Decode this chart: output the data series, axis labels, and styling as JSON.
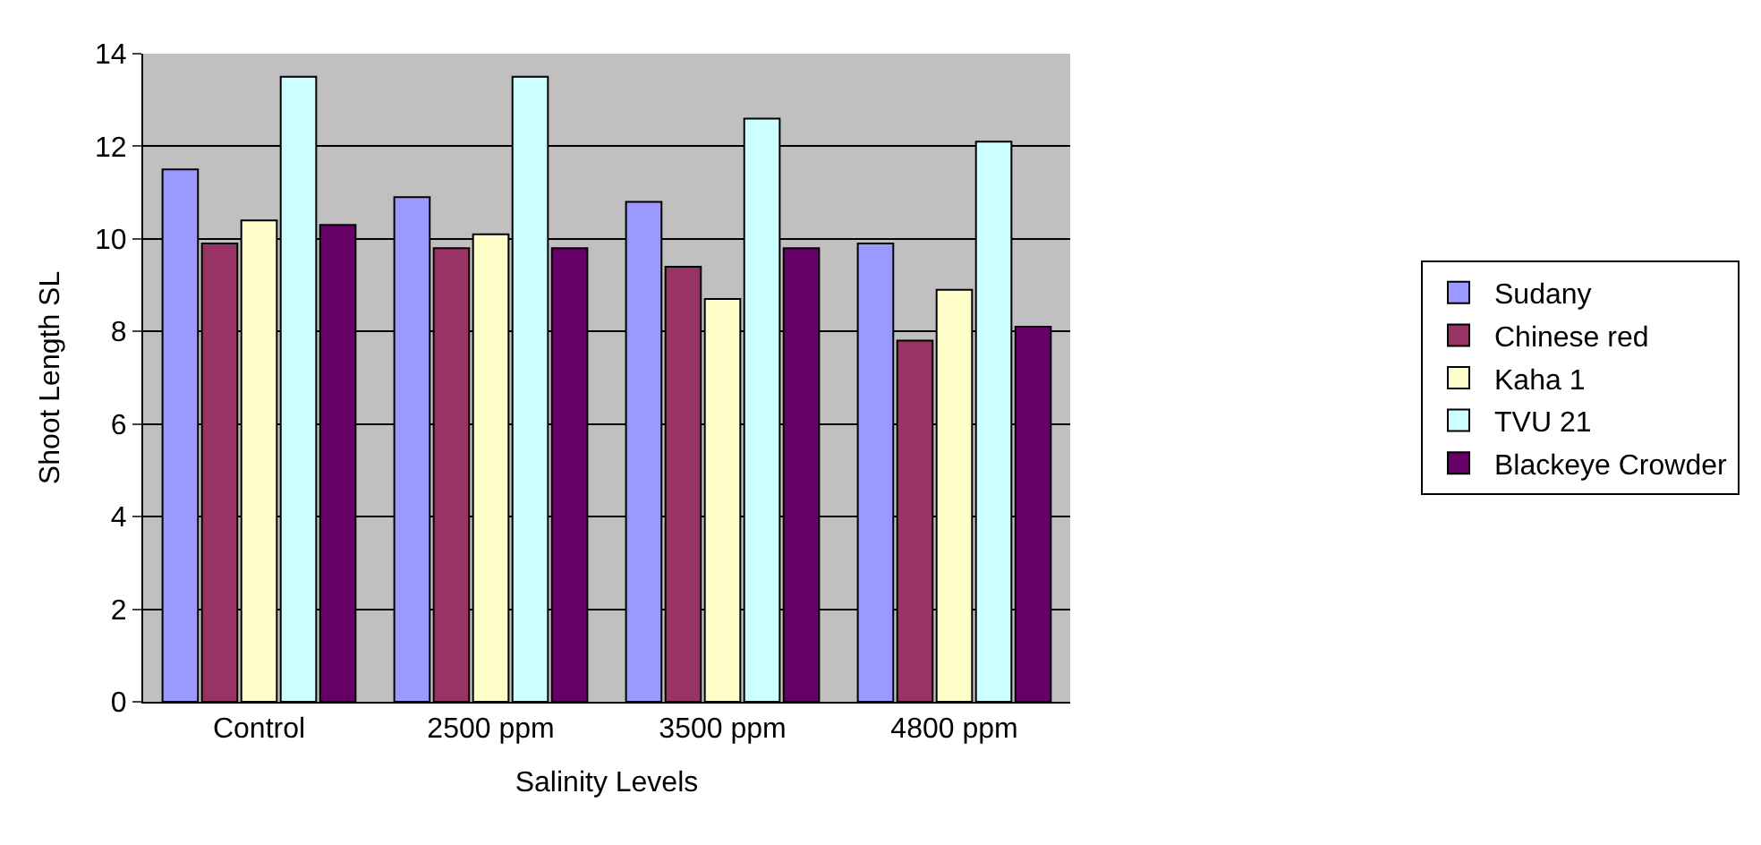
{
  "chart_data": {
    "type": "bar",
    "xlabel": "Salinity Levels",
    "ylabel": "Shoot Length SL",
    "categories": [
      "Control",
      "2500 ppm",
      "3500 ppm",
      "4800 ppm"
    ],
    "series": [
      {
        "name": "Sudany",
        "color": "#9999ff",
        "values": [
          11.5,
          10.9,
          10.8,
          9.9
        ]
      },
      {
        "name": "Chinese red",
        "color": "#993366",
        "values": [
          9.9,
          9.8,
          9.4,
          7.8
        ]
      },
      {
        "name": "Kaha 1",
        "color": "#ffffcc",
        "values": [
          10.4,
          10.1,
          8.7,
          8.9
        ]
      },
      {
        "name": "TVU 21",
        "color": "#ccffff",
        "values": [
          13.5,
          13.5,
          12.6,
          12.1
        ]
      },
      {
        "name": "Blackeye Crowder",
        "color": "#660066",
        "values": [
          10.3,
          9.8,
          9.8,
          8.1
        ]
      }
    ],
    "ylim": [
      0,
      14
    ],
    "yticks": [
      0,
      2,
      4,
      6,
      8,
      10,
      12,
      14
    ],
    "grid": "y",
    "legend": "right"
  }
}
